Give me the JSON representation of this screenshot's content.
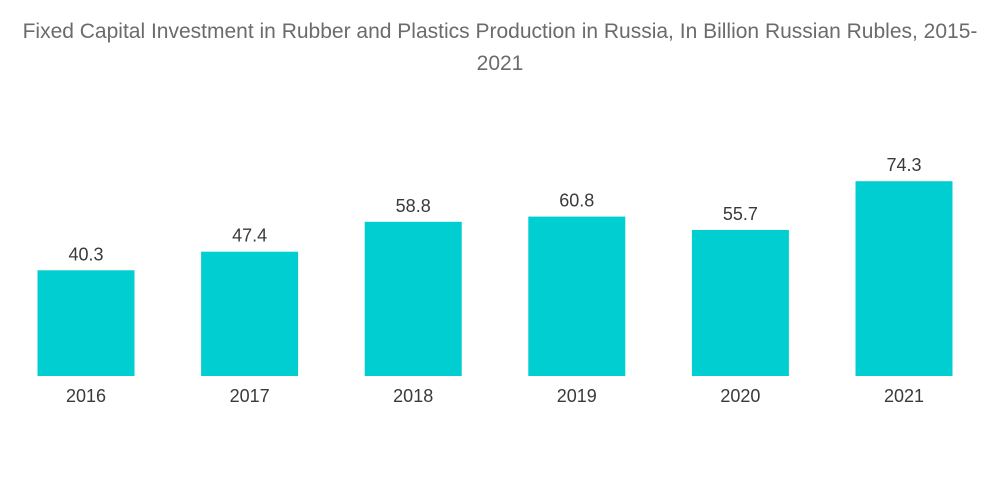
{
  "chart_data": {
    "type": "bar",
    "title": "Fixed Capital Investment in Rubber and Plastics Production in Russia, In Billion Russian Rubles, 2015-2021",
    "categories": [
      "2016",
      "2017",
      "2018",
      "2019",
      "2020",
      "2021"
    ],
    "values": [
      40.3,
      47.4,
      58.8,
      60.8,
      55.7,
      74.3
    ],
    "value_labels": [
      "40.3",
      "47.4",
      "58.8",
      "60.8",
      "55.7",
      "74.3"
    ],
    "xlabel": "",
    "ylabel": "",
    "ylim": [
      0,
      80
    ],
    "grid": false,
    "legend": "none",
    "bar_color": "#00CED1"
  }
}
